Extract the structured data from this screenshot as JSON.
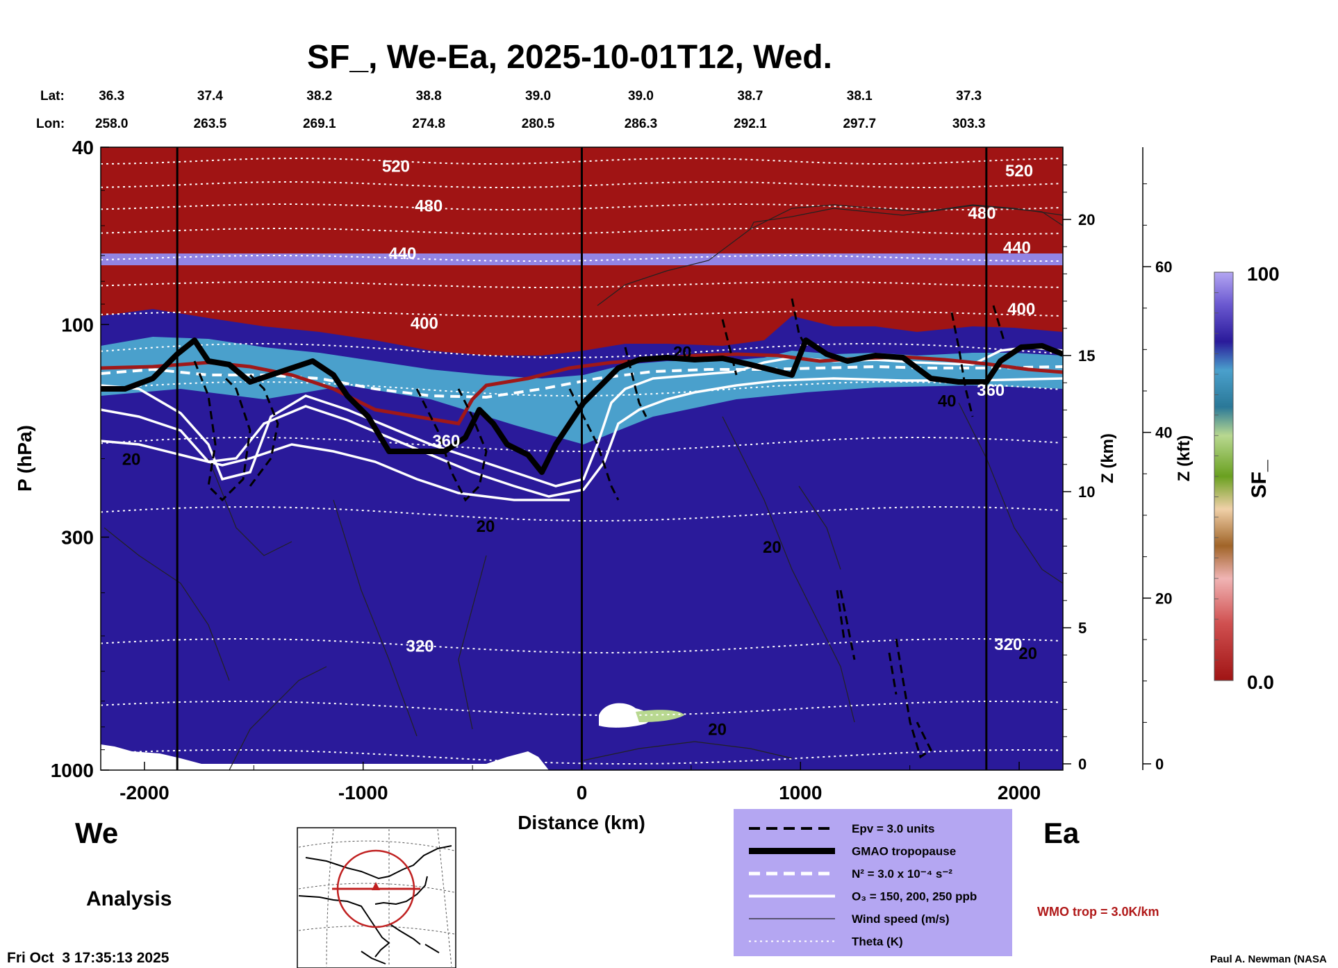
{
  "chart_data": {
    "type": "heatmap",
    "title": "SF_, We-Ea, 2025-10-01T12, Wed.",
    "xlabel": "Distance (km)",
    "ylabel": "P (hPa)",
    "y2label": "Z (km)",
    "y3label": "Z (kft)",
    "colorbar_label": "SF_",
    "x_range": [
      -2200,
      2200
    ],
    "y_range_hPa": [
      1000,
      40
    ],
    "y_scale": "log",
    "x_ticks": [
      -2000,
      -1000,
      0,
      1000,
      2000
    ],
    "x_tick_labels": [
      "-2000",
      "-1000",
      "0",
      "1000",
      "2000"
    ],
    "y_ticks": [
      40,
      100,
      300,
      1000
    ],
    "y_tick_labels": [
      "40",
      "100",
      "300",
      "1000"
    ],
    "z_km_ticks": [
      0,
      5,
      10,
      15,
      20
    ],
    "z_km_labels": [
      "0",
      "5",
      "10",
      "15",
      "20"
    ],
    "z_kft_ticks": [
      0,
      20,
      40,
      60
    ],
    "z_kft_labels": [
      "0",
      "20",
      "40",
      "60"
    ],
    "colorbar_range": [
      0.0,
      100
    ],
    "colorbar_labels": [
      "100",
      "0.0"
    ],
    "lat_label": "Lat:",
    "lon_label": "Lon:",
    "lat_values": [
      "36.3",
      "37.4",
      "38.2",
      "38.8",
      "39.0",
      "39.0",
      "38.7",
      "38.1",
      "37.3"
    ],
    "lon_values": [
      "258.0",
      "263.5",
      "269.1",
      "274.8",
      "280.5",
      "286.3",
      "292.1",
      "297.7",
      "303.3"
    ],
    "lat_lon_x_km": [
      -2150,
      -1700,
      -1200,
      -700,
      -200,
      270,
      770,
      1270,
      1770
    ],
    "vertical_lines_x_km": [
      -1850,
      0,
      1850
    ],
    "theta_labels": [
      {
        "text": "520",
        "x": -850,
        "p": 44
      },
      {
        "text": "480",
        "x": -700,
        "p": 54
      },
      {
        "text": "440",
        "x": -820,
        "p": 69
      },
      {
        "text": "400",
        "x": -720,
        "p": 99
      },
      {
        "text": "360",
        "x": -620,
        "p": 182
      },
      {
        "text": "320",
        "x": -740,
        "p": 525
      },
      {
        "text": "520",
        "x": 2000,
        "p": 45
      },
      {
        "text": "480",
        "x": 1830,
        "p": 56
      },
      {
        "text": "440",
        "x": 1990,
        "p": 67
      },
      {
        "text": "400",
        "x": 2010,
        "p": 92
      },
      {
        "text": "360",
        "x": 1870,
        "p": 140
      },
      {
        "text": "320",
        "x": 1950,
        "p": 520
      }
    ],
    "wind_labels": [
      {
        "text": "20",
        "x": -2060,
        "p": 200
      },
      {
        "text": "20",
        "x": -440,
        "p": 283
      },
      {
        "text": "20",
        "x": 870,
        "p": 315
      },
      {
        "text": "20",
        "x": 620,
        "p": 808
      },
      {
        "text": "20",
        "x": 460,
        "p": 115
      },
      {
        "text": "40",
        "x": 1670,
        "p": 148
      },
      {
        "text": "20",
        "x": 2040,
        "p": 545
      }
    ],
    "legend": [
      {
        "label": "Epv = 3.0 units",
        "style": "dashed-black"
      },
      {
        "label": "GMAO tropopause",
        "style": "thick-black"
      },
      {
        "label": "N² = 3.0 x 10⁻⁴ s⁻²",
        "style": "dashed-white"
      },
      {
        "label": "O₃ = 150, 200, 250 ppb",
        "style": "solid-white"
      },
      {
        "label": "Wind speed (m/s)",
        "style": "thin-black"
      },
      {
        "label": "Theta (K)",
        "style": "dotted-white"
      }
    ],
    "wmo_label": "WMO trop = 3.0K/km",
    "colors": {
      "stratosphere_top": "#b4a6f2",
      "deep_blue": "#2a1a9a",
      "cyan_blue": "#4aa0cc",
      "teal": "#2a7898",
      "green": "#6aa020",
      "tan": "#c8a070",
      "brown": "#a06428",
      "pink": "#e8a0a0",
      "low_red": "#a01414",
      "tropopause_red": "#a01818",
      "legend_bg": "#b4a6f2",
      "wmo_text": "#b01818"
    }
  },
  "labels": {
    "left_side": "We",
    "right_side": "Ea",
    "analysis": "Analysis",
    "timestamp": "Fri Oct  3 17:35:13 2025",
    "credit": "Paul A. Newman (NASA"
  }
}
